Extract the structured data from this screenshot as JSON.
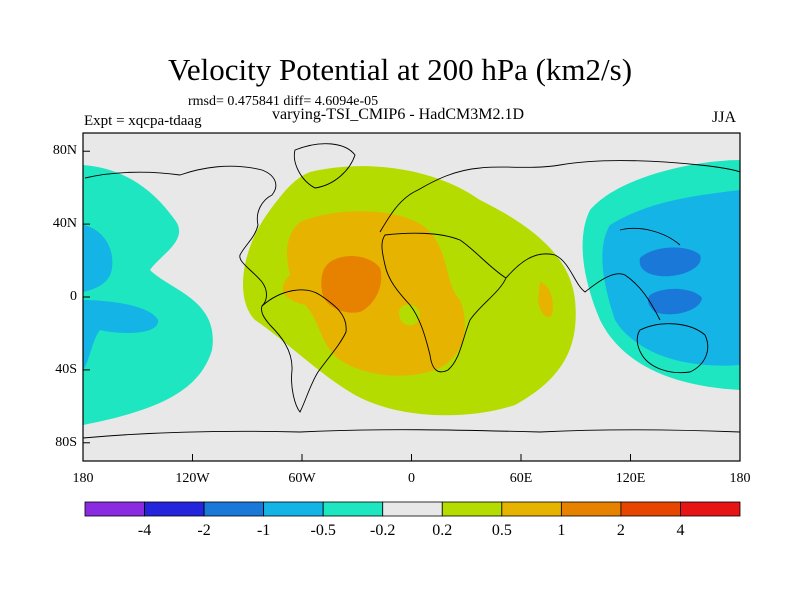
{
  "title": "Velocity Potential at 200 hPa (km2/s)",
  "stats": "rmsd= 0.475841 diff= 4.6094e-05",
  "experiment": "Expt = xqcpa-tdaag",
  "subtitle": "varying-TSI_CMIP6 - HadCM3M2.1D",
  "season": "JJA",
  "map": {
    "projection": "cylindrical-equidistant",
    "lon_range": [
      -180,
      180
    ],
    "lat_range": [
      -90,
      90
    ],
    "background_color": "#e8e8e8",
    "lat_ticks": [
      {
        "value": 80,
        "label": "80N"
      },
      {
        "value": 40,
        "label": "40N"
      },
      {
        "value": 0,
        "label": "0"
      },
      {
        "value": -40,
        "label": "40S"
      },
      {
        "value": -80,
        "label": "80S"
      }
    ],
    "lon_ticks": [
      {
        "value": -180,
        "label": "180"
      },
      {
        "value": -120,
        "label": "120W"
      },
      {
        "value": -60,
        "label": "60W"
      },
      {
        "value": 0,
        "label": "0"
      },
      {
        "value": 60,
        "label": "60E"
      },
      {
        "value": 120,
        "label": "120E"
      },
      {
        "value": 180,
        "label": "180"
      }
    ]
  },
  "colorbar": {
    "colors": [
      "#8a2be2",
      "#2424dc",
      "#1a78d8",
      "#14b4e6",
      "#1ee6c0",
      "#e8e8e8",
      "#b4dc00",
      "#e6b400",
      "#e68200",
      "#e64600",
      "#e61414"
    ],
    "labels": [
      "-4",
      "-2",
      "-1",
      "-0.5",
      "-0.2",
      "0.2",
      "0.5",
      "1",
      "2",
      "4"
    ]
  }
}
